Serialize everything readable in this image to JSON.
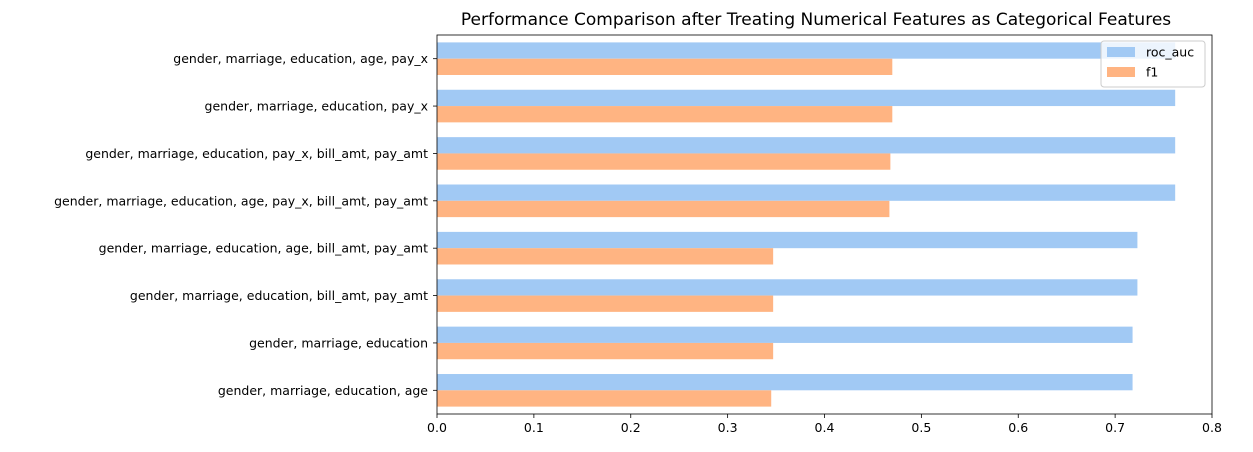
{
  "chart_data": {
    "type": "bar",
    "orientation": "horizontal",
    "title": "Performance Comparison after Treating Numerical Features as Categorical Features",
    "xlabel": "",
    "ylabel": "",
    "xlim": [
      0.0,
      0.8
    ],
    "xticks": [
      "0.0",
      "0.1",
      "0.2",
      "0.3",
      "0.4",
      "0.5",
      "0.6",
      "0.7",
      "0.8"
    ],
    "grid": false,
    "legend_position": "top-right",
    "categories": [
      "gender, marriage, education, age, pay_x",
      "gender, marriage, education, pay_x",
      "gender, marriage, education, pay_x, bill_amt, pay_amt",
      "gender, marriage, education, age, pay_x, bill_amt, pay_amt",
      "gender, marriage, education, age, bill_amt, pay_amt",
      "gender, marriage, education, bill_amt, pay_amt",
      "gender, marriage, education",
      "gender, marriage, education, age"
    ],
    "series": [
      {
        "name": "roc_auc",
        "color": "#a1c9f4",
        "values": [
          0.762,
          0.762,
          0.762,
          0.762,
          0.723,
          0.723,
          0.718,
          0.718
        ]
      },
      {
        "name": "f1",
        "color": "#ffb482",
        "values": [
          0.47,
          0.47,
          0.468,
          0.467,
          0.347,
          0.347,
          0.347,
          0.345
        ]
      }
    ]
  }
}
